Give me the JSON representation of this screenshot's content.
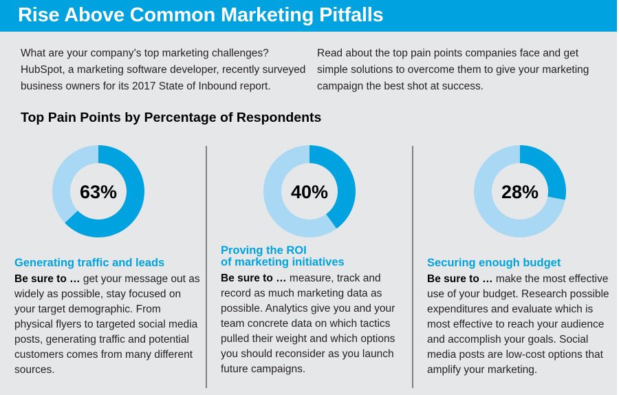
{
  "header": {
    "title": "Rise Above Common Marketing Pitfalls"
  },
  "intro": {
    "left": "What are your company’s top marketing challenges? HubSpot, a marketing software developer, recently surveyed business owners for its 2017 State of Inbound report.",
    "right": "Read about the top pain points companies face and get simple solutions to overcome them to give your marketing campaign the best shot at success."
  },
  "colors": {
    "accent": "#00a3e0",
    "accent_light": "#a8d8f4",
    "background": "#e6e7e9",
    "divider": "#808080"
  },
  "chart_data": {
    "type": "pie",
    "title": "Top Pain Points by Percentage of Respondents",
    "style": "donut",
    "unit": "%",
    "items": [
      {
        "label": "Generating traffic and leads",
        "value": 63,
        "display": "63%"
      },
      {
        "label": "Proving the ROI of marketing initiatives",
        "value": 40,
        "display": "40%"
      },
      {
        "label": "Securing enough budget",
        "value": 28,
        "display": "28%"
      }
    ]
  },
  "columns": [
    {
      "title": "Generating traffic and leads",
      "lead": "Be sure to …",
      "body": " get your message out as widely as possible, stay focused on your target demographic. From physical flyers to targeted social media posts, generating traffic and potential customers comes from many different sources."
    },
    {
      "title_line1": "Proving the ROI",
      "title_line2": "of marketing initiatives",
      "lead": "Be sure to …",
      "body": " measure, track and record as much marketing data as possible. Analytics give you and your team concrete data on which tactics pulled their weight and which options you should reconsider as you launch future campaigns."
    },
    {
      "title": "Securing enough budget",
      "lead": "Be sure to …",
      "body": " make the most effective use of your budget. Research possible expenditures and evaluate which is most effective to reach your audience and accomplish your goals. Social media posts are low-cost options that amplify your marketing."
    }
  ]
}
